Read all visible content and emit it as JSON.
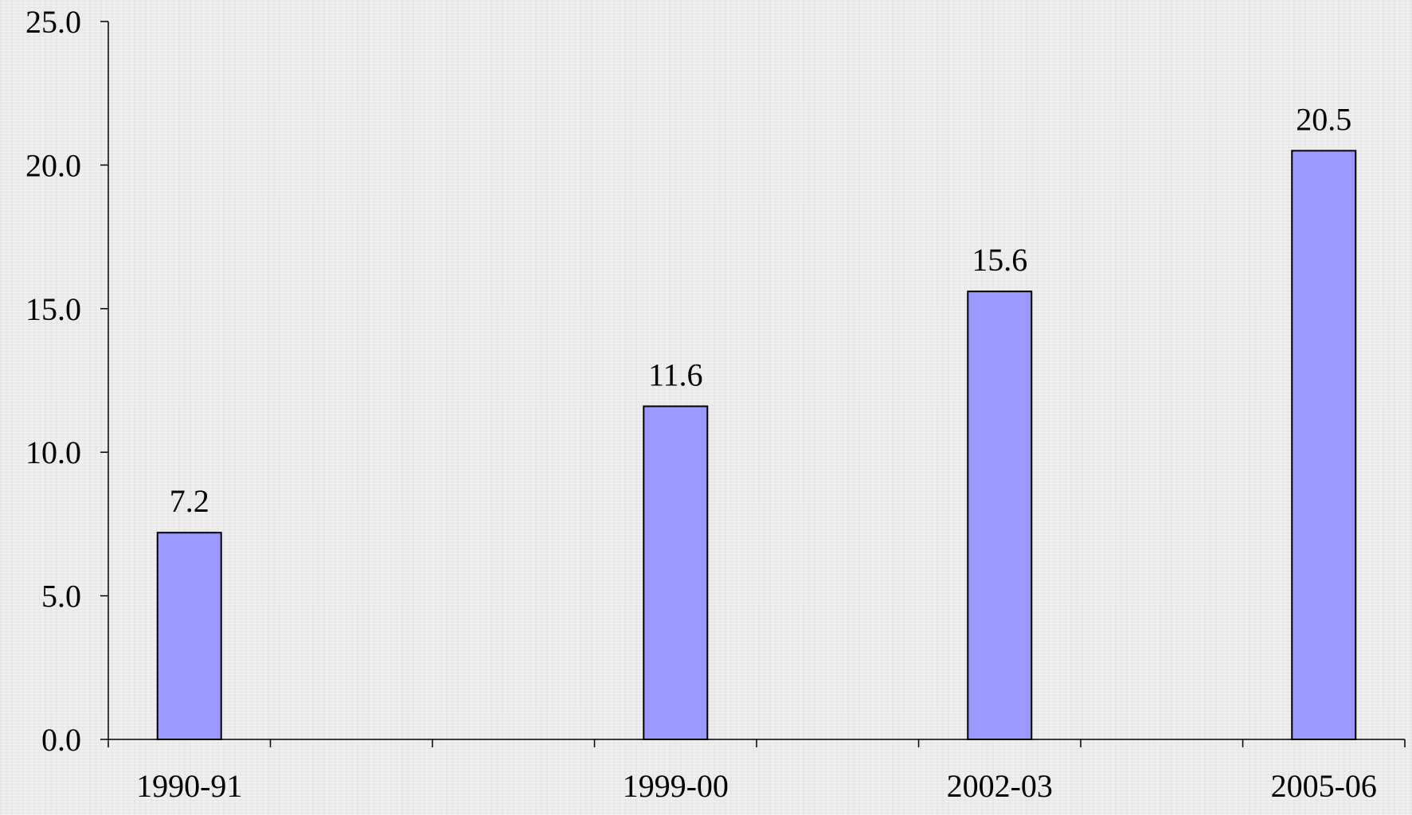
{
  "chart_data": {
    "type": "bar",
    "categories": [
      "1990-91",
      "",
      "",
      "1999-00",
      "",
      "2002-03",
      "",
      "2005-06"
    ],
    "values": [
      7.2,
      null,
      null,
      11.6,
      null,
      15.6,
      null,
      20.5
    ],
    "data_labels": [
      "7.2",
      "",
      "",
      "11.6",
      "",
      "15.6",
      "",
      "20.5"
    ],
    "title": "",
    "xlabel": "",
    "ylabel": "",
    "ylim": [
      0,
      25
    ],
    "y_ticks": [
      "0.0",
      "5.0",
      "10.0",
      "15.0",
      "20.0",
      "25.0"
    ],
    "grid": false,
    "legend": "none",
    "colors": {
      "bar_fill": "#9999ff",
      "bar_stroke": "#000000",
      "axis": "#000000"
    }
  }
}
